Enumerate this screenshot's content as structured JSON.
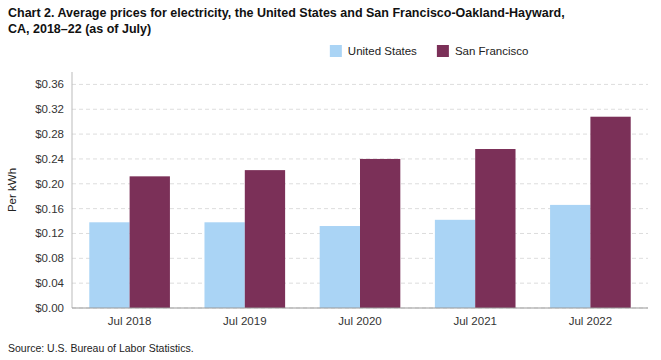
{
  "chart_data": {
    "type": "bar",
    "title": "Chart 2. Average prices for electricity, the United States and San Francisco-Oakland-Hayward,",
    "subtitle": "CA, 2018–22 (as of July)",
    "y_label": "Per kWh",
    "annotations": [
      "Source: U.S. Bureau of Labor Statistics."
    ],
    "categories": [
      "Jul 2018",
      "Jul 2019",
      "Jul 2020",
      "Jul 2021",
      "Jul 2022"
    ],
    "series": [
      {
        "name": "United States",
        "color": "#aad4f5",
        "values": [
          0.138,
          0.138,
          0.132,
          0.142,
          0.166
        ]
      },
      {
        "name": "San Francisco",
        "color": "#7b3058",
        "values": [
          0.212,
          0.222,
          0.24,
          0.256,
          0.308
        ]
      }
    ],
    "ylim": [
      0,
      0.38
    ],
    "yticks": [
      {
        "value": 0.0,
        "label": "$0.00"
      },
      {
        "value": 0.04,
        "label": "$0.04"
      },
      {
        "value": 0.08,
        "label": "$0.08"
      },
      {
        "value": 0.12,
        "label": "$0.12"
      },
      {
        "value": 0.16,
        "label": "$0.16"
      },
      {
        "value": 0.2,
        "label": "$0.20"
      },
      {
        "value": 0.24,
        "label": "$0.24"
      },
      {
        "value": 0.28,
        "label": "$0.28"
      },
      {
        "value": 0.32,
        "label": "$0.32"
      },
      {
        "value": 0.36,
        "label": "$0.36"
      }
    ],
    "grid": true,
    "legend": "top"
  }
}
